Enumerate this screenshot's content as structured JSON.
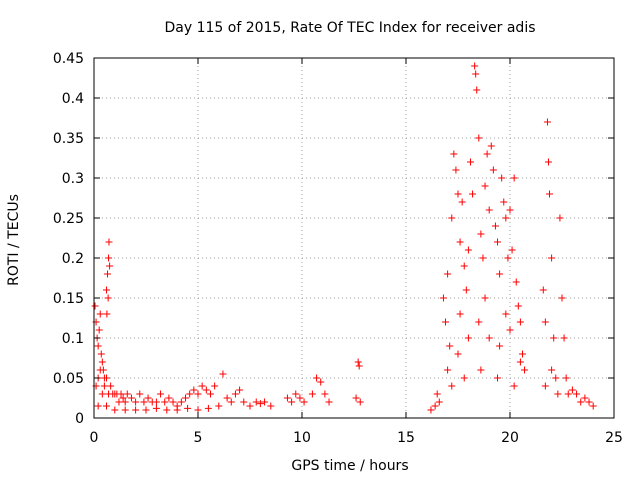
{
  "chart_data": {
    "type": "scatter",
    "title": "Day 115 of 2015, Rate Of TEC Index for receiver adis",
    "xlabel": "GPS time / hours",
    "ylabel": "ROTI / TECUs",
    "xlim": [
      0,
      25
    ],
    "ylim": [
      0,
      0.45
    ],
    "xticks": [
      0,
      5,
      10,
      15,
      20,
      25
    ],
    "xtick_labels": [
      "0",
      "5",
      "10",
      "15",
      "20",
      "25"
    ],
    "yticks": [
      0,
      0.05,
      0.1,
      0.15,
      0.2,
      0.25,
      0.3,
      0.35,
      0.4,
      0.45
    ],
    "ytick_labels": [
      "0",
      "0.05",
      "0.1",
      "0.15",
      "0.2",
      "0.25",
      "0.3",
      "0.35",
      "0.4",
      "0.45"
    ],
    "grid": true,
    "marker": "+",
    "marker_color": "#ff0000",
    "series": [
      {
        "name": "ROTI",
        "points": [
          [
            0.05,
            0.14
          ],
          [
            0.1,
            0.12
          ],
          [
            0.15,
            0.1
          ],
          [
            0.2,
            0.09
          ],
          [
            0.25,
            0.11
          ],
          [
            0.3,
            0.13
          ],
          [
            0.35,
            0.08
          ],
          [
            0.4,
            0.07
          ],
          [
            0.45,
            0.06
          ],
          [
            0.5,
            0.05
          ],
          [
            0.1,
            0.04
          ],
          [
            0.2,
            0.05
          ],
          [
            0.3,
            0.06
          ],
          [
            0.4,
            0.03
          ],
          [
            0.5,
            0.04
          ],
          [
            0.6,
            0.05
          ],
          [
            0.7,
            0.03
          ],
          [
            0.8,
            0.04
          ],
          [
            0.9,
            0.03
          ],
          [
            1.0,
            0.03
          ],
          [
            0.6,
            0.16
          ],
          [
            0.65,
            0.18
          ],
          [
            0.7,
            0.2
          ],
          [
            0.72,
            0.22
          ],
          [
            0.75,
            0.19
          ],
          [
            0.68,
            0.15
          ],
          [
            0.62,
            0.13
          ],
          [
            1.1,
            0.03
          ],
          [
            1.2,
            0.02
          ],
          [
            1.3,
            0.03
          ],
          [
            1.4,
            0.025
          ],
          [
            1.5,
            0.02
          ],
          [
            1.6,
            0.03
          ],
          [
            1.8,
            0.025
          ],
          [
            2.0,
            0.02
          ],
          [
            2.2,
            0.03
          ],
          [
            2.4,
            0.02
          ],
          [
            2.6,
            0.025
          ],
          [
            2.8,
            0.02
          ],
          [
            3.0,
            0.02
          ],
          [
            3.2,
            0.03
          ],
          [
            3.4,
            0.02
          ],
          [
            3.6,
            0.025
          ],
          [
            3.8,
            0.02
          ],
          [
            4.0,
            0.015
          ],
          [
            4.2,
            0.02
          ],
          [
            4.4,
            0.025
          ],
          [
            4.6,
            0.03
          ],
          [
            4.8,
            0.035
          ],
          [
            5.0,
            0.03
          ],
          [
            5.2,
            0.04
          ],
          [
            5.4,
            0.035
          ],
          [
            5.6,
            0.03
          ],
          [
            5.8,
            0.04
          ],
          [
            0.2,
            0.015
          ],
          [
            0.6,
            0.015
          ],
          [
            1.0,
            0.01
          ],
          [
            1.5,
            0.01
          ],
          [
            2.0,
            0.01
          ],
          [
            2.5,
            0.01
          ],
          [
            3.0,
            0.012
          ],
          [
            3.5,
            0.01
          ],
          [
            4.0,
            0.01
          ],
          [
            4.5,
            0.012
          ],
          [
            5.0,
            0.01
          ],
          [
            5.5,
            0.012
          ],
          [
            6.0,
            0.015
          ],
          [
            6.2,
            0.055
          ],
          [
            6.4,
            0.025
          ],
          [
            6.6,
            0.02
          ],
          [
            6.8,
            0.03
          ],
          [
            7.0,
            0.035
          ],
          [
            7.2,
            0.02
          ],
          [
            7.5,
            0.015
          ],
          [
            7.8,
            0.02
          ],
          [
            8.0,
            0.018
          ],
          [
            8.2,
            0.02
          ],
          [
            8.5,
            0.015
          ],
          [
            9.3,
            0.025
          ],
          [
            9.5,
            0.02
          ],
          [
            9.7,
            0.03
          ],
          [
            9.9,
            0.025
          ],
          [
            10.1,
            0.02
          ],
          [
            10.5,
            0.03
          ],
          [
            10.7,
            0.05
          ],
          [
            10.9,
            0.045
          ],
          [
            11.1,
            0.03
          ],
          [
            11.3,
            0.02
          ],
          [
            12.6,
            0.025
          ],
          [
            12.7,
            0.07
          ],
          [
            12.75,
            0.065
          ],
          [
            12.8,
            0.02
          ],
          [
            16.2,
            0.01
          ],
          [
            16.4,
            0.015
          ],
          [
            16.6,
            0.02
          ],
          [
            16.8,
            0.15
          ],
          [
            16.9,
            0.12
          ],
          [
            17.0,
            0.18
          ],
          [
            17.1,
            0.09
          ],
          [
            17.2,
            0.25
          ],
          [
            17.3,
            0.33
          ],
          [
            17.4,
            0.31
          ],
          [
            17.5,
            0.28
          ],
          [
            17.6,
            0.22
          ],
          [
            17.7,
            0.27
          ],
          [
            17.8,
            0.19
          ],
          [
            17.9,
            0.16
          ],
          [
            18.0,
            0.21
          ],
          [
            18.1,
            0.32
          ],
          [
            18.2,
            0.28
          ],
          [
            18.3,
            0.44
          ],
          [
            18.35,
            0.43
          ],
          [
            18.4,
            0.41
          ],
          [
            18.5,
            0.35
          ],
          [
            18.6,
            0.23
          ],
          [
            18.7,
            0.2
          ],
          [
            18.8,
            0.29
          ],
          [
            18.9,
            0.33
          ],
          [
            19.0,
            0.26
          ],
          [
            19.1,
            0.34
          ],
          [
            19.2,
            0.31
          ],
          [
            19.3,
            0.24
          ],
          [
            19.4,
            0.22
          ],
          [
            19.5,
            0.18
          ],
          [
            19.6,
            0.3
          ],
          [
            19.7,
            0.27
          ],
          [
            19.8,
            0.25
          ],
          [
            19.9,
            0.2
          ],
          [
            20.0,
            0.26
          ],
          [
            20.1,
            0.21
          ],
          [
            20.2,
            0.3
          ],
          [
            20.3,
            0.17
          ],
          [
            20.4,
            0.14
          ],
          [
            20.5,
            0.12
          ],
          [
            20.6,
            0.08
          ],
          [
            20.7,
            0.06
          ],
          [
            17.0,
            0.06
          ],
          [
            17.5,
            0.08
          ],
          [
            18.0,
            0.1
          ],
          [
            18.5,
            0.12
          ],
          [
            19.0,
            0.1
          ],
          [
            19.5,
            0.09
          ],
          [
            20.0,
            0.11
          ],
          [
            20.5,
            0.07
          ],
          [
            17.2,
            0.04
          ],
          [
            17.8,
            0.05
          ],
          [
            18.6,
            0.06
          ],
          [
            19.4,
            0.05
          ],
          [
            20.2,
            0.04
          ],
          [
            16.5,
            0.03
          ],
          [
            17.6,
            0.13
          ],
          [
            18.8,
            0.15
          ],
          [
            19.8,
            0.13
          ],
          [
            21.6,
            0.16
          ],
          [
            21.7,
            0.12
          ],
          [
            21.8,
            0.37
          ],
          [
            21.85,
            0.32
          ],
          [
            21.9,
            0.28
          ],
          [
            22.0,
            0.2
          ],
          [
            22.1,
            0.1
          ],
          [
            22.2,
            0.05
          ],
          [
            22.3,
            0.03
          ],
          [
            22.4,
            0.25
          ],
          [
            22.5,
            0.15
          ],
          [
            22.6,
            0.1
          ],
          [
            22.7,
            0.05
          ],
          [
            22.8,
            0.03
          ],
          [
            23.0,
            0.035
          ],
          [
            23.2,
            0.03
          ],
          [
            23.4,
            0.02
          ],
          [
            23.6,
            0.025
          ],
          [
            23.8,
            0.02
          ],
          [
            24.0,
            0.015
          ],
          [
            21.7,
            0.04
          ],
          [
            22.0,
            0.06
          ]
        ]
      }
    ]
  }
}
